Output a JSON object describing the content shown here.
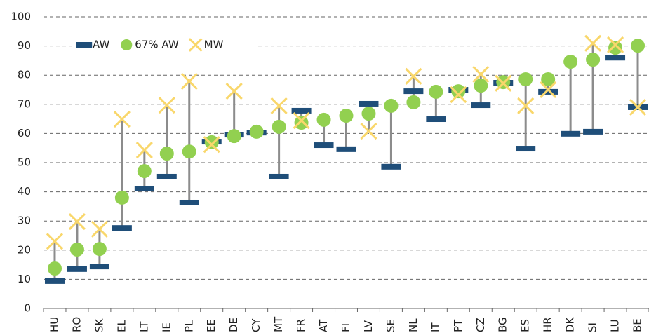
{
  "chart_data": {
    "type": "range-dot",
    "categories": [
      "HU",
      "RO",
      "SK",
      "EL",
      "LT",
      "IE",
      "PL",
      "EE",
      "DE",
      "CY",
      "MT",
      "FR",
      "AT",
      "FI",
      "LV",
      "SE",
      "NL",
      "IT",
      "PT",
      "CZ",
      "BG",
      "ES",
      "HR",
      "DK",
      "SI",
      "LU",
      "BE"
    ],
    "series": [
      {
        "name": "AW",
        "color": "#1f4e79",
        "marker": "dash",
        "values": [
          9.4,
          13.5,
          14.4,
          27.6,
          41.1,
          45.2,
          36.3,
          57.2,
          59.6,
          60.3,
          45.2,
          67.8,
          56,
          54.6,
          70.2,
          48.6,
          74.5,
          64.9,
          75,
          69.7,
          77.4,
          54.8,
          74.3,
          59.9,
          60.6,
          86,
          69
        ]
      },
      {
        "name": "67% AW",
        "color": "#92d050",
        "marker": "circle",
        "values": [
          13.7,
          20.2,
          20.4,
          38,
          47.1,
          53.1,
          53.8,
          57,
          59.1,
          60.6,
          62.3,
          63.7,
          64.7,
          66.1,
          66.8,
          69.5,
          70.7,
          74.3,
          74.5,
          76.4,
          77.6,
          78.6,
          78.6,
          84.6,
          85.3,
          89.4,
          90.1
        ]
      },
      {
        "name": "MW",
        "color": "#f9d76b",
        "marker": "x",
        "values": [
          23,
          29.8,
          27.2,
          64.9,
          54.3,
          69.7,
          77.9,
          56.2,
          74.5,
          null,
          69.5,
          64.4,
          null,
          null,
          60.8,
          null,
          79.6,
          null,
          73.3,
          80.3,
          77.2,
          69.5,
          75,
          null,
          90.9,
          90.4,
          69
        ]
      }
    ],
    "ylim": [
      0,
      100
    ],
    "yticks": [
      0,
      10,
      20,
      30,
      40,
      50,
      60,
      70,
      80,
      90,
      100
    ],
    "grid": true,
    "legend": "top-left"
  }
}
